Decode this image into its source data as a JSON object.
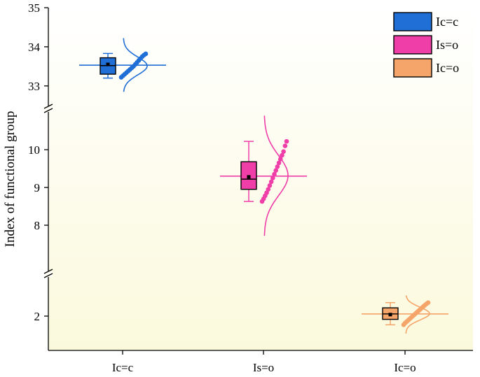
{
  "chart_data": {
    "type": "box-scatter-distribution",
    "title": "",
    "xlabel": "",
    "ylabel": "Index of functional group",
    "categories": [
      "Ic=c",
      "Is=o",
      "Ic=o"
    ],
    "legend": {
      "placement": "top-right",
      "entries": [
        {
          "label": "Ic=c",
          "color": "#1f6fd6"
        },
        {
          "label": "Is=o",
          "color": "#f03ea8"
        },
        {
          "label": "Ic=o",
          "color": "#f5a56a"
        }
      ]
    },
    "y_axis_segments": [
      {
        "range": [
          1,
          3.8
        ],
        "ticks": [
          2
        ]
      },
      {
        "range": [
          7,
          11
        ],
        "ticks": [
          8,
          9,
          10
        ]
      },
      {
        "range": [
          32.8,
          35
        ],
        "ticks": [
          33,
          34,
          35
        ]
      }
    ],
    "series": [
      {
        "name": "Ic=c",
        "color": "#1f6fd6",
        "box": {
          "whisker_low": 33.2,
          "q1": 33.3,
          "median": 33.52,
          "mean": 33.55,
          "q3": 33.72,
          "whisker_high": 33.83
        },
        "mean_line": 33.53,
        "points": [
          33.22,
          33.26,
          33.3,
          33.34,
          33.38,
          33.42,
          33.46,
          33.5,
          33.55,
          33.6,
          33.65,
          33.7,
          33.75,
          33.79,
          33.82
        ],
        "dist_range": [
          32.85,
          34.22
        ]
      },
      {
        "name": "Is=o",
        "color": "#f03ea8",
        "box": {
          "whisker_low": 8.63,
          "q1": 8.95,
          "median": 9.22,
          "mean": 9.28,
          "q3": 9.68,
          "whisker_high": 10.22
        },
        "mean_line": 9.3,
        "points": [
          8.63,
          8.7,
          8.78,
          8.86,
          8.95,
          9.05,
          9.15,
          9.25,
          9.35,
          9.45,
          9.55,
          9.65,
          9.75,
          9.85,
          9.95,
          10.1,
          10.22
        ],
        "dist_range": [
          7.72,
          10.9
        ]
      },
      {
        "name": "Ic=o",
        "color": "#f5a56a",
        "box": {
          "whisker_low": 1.6,
          "q1": 1.85,
          "median": 2.1,
          "mean": 2.07,
          "q3": 2.38,
          "whisker_high": 2.62
        },
        "mean_line": 2.1,
        "points": [
          1.6,
          1.68,
          1.74,
          1.8,
          1.86,
          1.92,
          1.98,
          2.04,
          2.1,
          2.16,
          2.22,
          2.28,
          2.34,
          2.4,
          2.46,
          2.52,
          2.57,
          2.62
        ],
        "dist_range": [
          1.2,
          2.95
        ]
      }
    ]
  }
}
